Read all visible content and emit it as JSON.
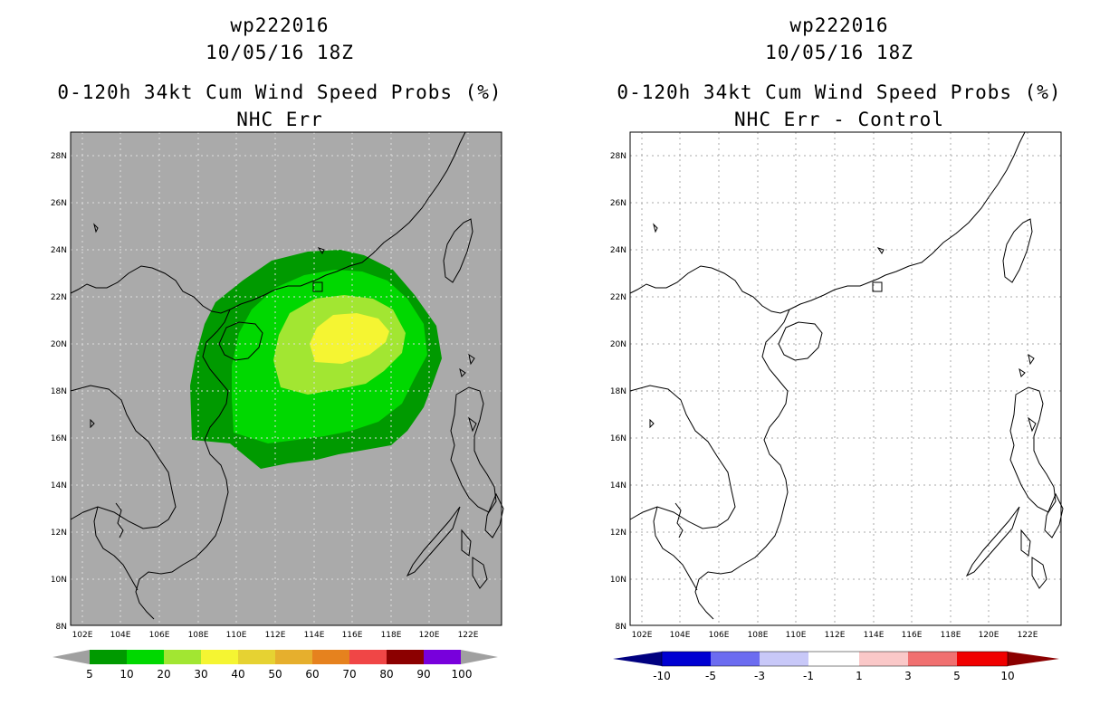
{
  "left": {
    "title": {
      "storm": "wp222016",
      "datetime": "10/05/16 18Z",
      "product": "0-120h 34kt Cum Wind Speed Probs (%)",
      "subtitle": "NHC Err"
    },
    "colorbar": {
      "labels": [
        "5",
        "10",
        "20",
        "30",
        "40",
        "50",
        "60",
        "70",
        "80",
        "90",
        "100"
      ],
      "colors": [
        "#009a00",
        "#00d800",
        "#a2e632",
        "#f5f532",
        "#e6d232",
        "#e6af2d",
        "#e6821e",
        "#f04646",
        "#8c0000",
        "#7800dc"
      ],
      "end_color": "#a0a0a0"
    }
  },
  "right": {
    "title": {
      "storm": "wp222016",
      "datetime": "10/05/16 18Z",
      "product": "0-120h 34kt Cum Wind Speed Probs (%)",
      "subtitle": "NHC Err - Control"
    },
    "colorbar": {
      "labels": [
        "-10",
        "-5",
        "-3",
        "-1",
        "1",
        "3",
        "5",
        "10"
      ],
      "colors": [
        "#0000d2",
        "#6c6cf0",
        "#c8c8f8",
        "#ffffff",
        "#fac8c8",
        "#f07070",
        "#f00000"
      ],
      "low_end_color": "#000080",
      "high_end_color": "#8b0000"
    }
  },
  "axes": {
    "lat_labels": [
      "28N",
      "26N",
      "24N",
      "22N",
      "20N",
      "18N",
      "16N",
      "14N",
      "12N",
      "10N",
      "8N"
    ],
    "lon_labels": [
      "102E",
      "104E",
      "106E",
      "108E",
      "110E",
      "112E",
      "114E",
      "116E",
      "118E",
      "120E",
      "122E"
    ]
  },
  "colors": {
    "land_ocean_gray": "#aaaaaa",
    "coast": "#000000"
  }
}
